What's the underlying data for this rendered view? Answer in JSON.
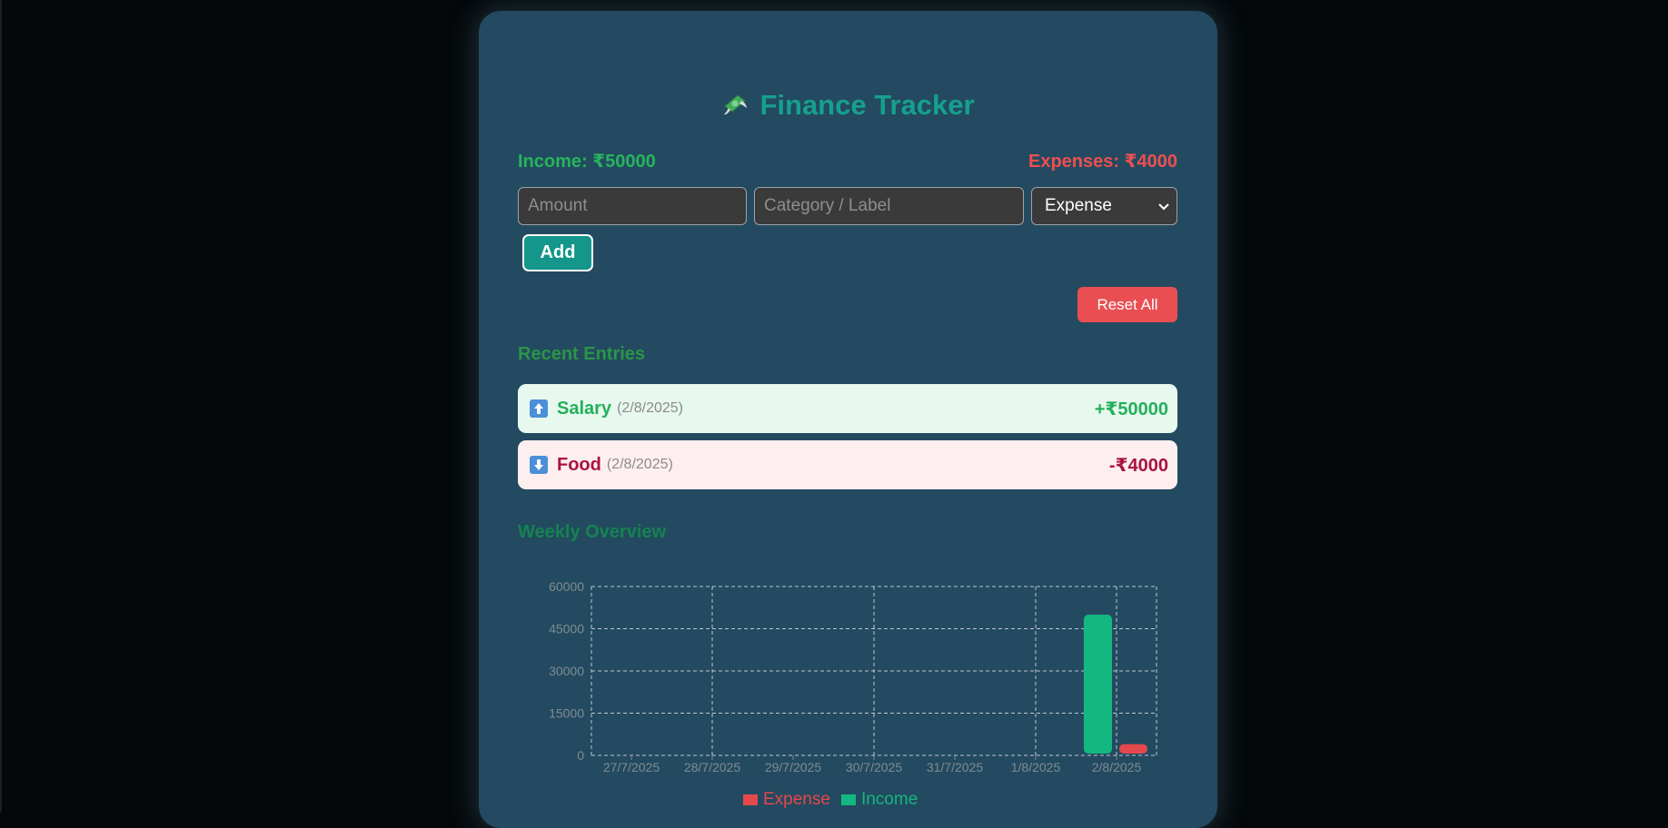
{
  "header": {
    "title": "Finance Tracker",
    "icon": "money-with-wings-icon"
  },
  "summary": {
    "income": "Income: ₹50000",
    "expenses": "Expenses: ₹4000"
  },
  "form": {
    "amount_placeholder": "Amount",
    "category_placeholder": "Category / Label",
    "type_selected": "Expense",
    "add_label": "Add",
    "reset_label": "Reset All"
  },
  "recent": {
    "title": "Recent Entries",
    "entries": [
      {
        "icon": "up-arrow-icon",
        "label": "Salary",
        "date": "(2/8/2025)",
        "amount": "+₹50000"
      },
      {
        "icon": "down-arrow-icon",
        "label": "Food",
        "date": "(2/8/2025)",
        "amount": "-₹4000"
      }
    ]
  },
  "weekly": {
    "title": "Weekly Overview"
  },
  "colors": {
    "income": "#14b77f",
    "expense": "#e5484d",
    "accent": "#16a08e"
  },
  "chart_data": {
    "type": "bar",
    "categories": [
      "27/7/2025",
      "28/7/2025",
      "29/7/2025",
      "30/7/2025",
      "31/7/2025",
      "1/8/2025",
      "2/8/2025"
    ],
    "series": [
      {
        "name": "Income",
        "values": [
          0,
          0,
          0,
          0,
          0,
          0,
          50000
        ]
      },
      {
        "name": "Expense",
        "values": [
          0,
          0,
          0,
          0,
          0,
          0,
          4000
        ]
      }
    ],
    "ylim": [
      0,
      60000
    ],
    "yticks": [
      "0",
      "15000",
      "30000",
      "45000",
      "60000"
    ],
    "grid": true,
    "legend": [
      "Expense",
      "Income"
    ],
    "legend_position": "bottom"
  }
}
